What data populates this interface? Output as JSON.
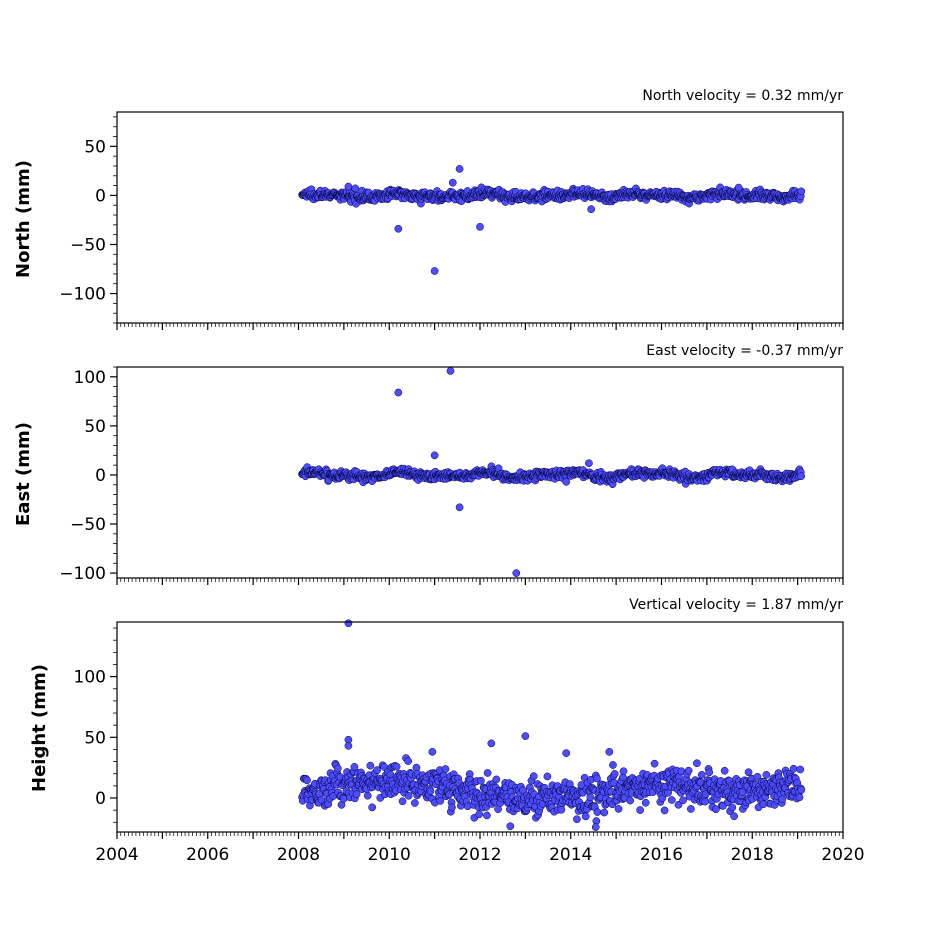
{
  "chart_data": [
    {
      "type": "scatter",
      "ylabel": "North (mm)",
      "velocity_label": "North velocity = 0.32 mm/yr",
      "xlim": [
        2004,
        2020
      ],
      "ylim": [
        -130,
        85
      ],
      "yticks": [
        50,
        0,
        -50,
        -100
      ],
      "ytick_labels": [
        "50",
        "0",
        "−50",
        "−100"
      ],
      "marker_color": "#4d4dff",
      "edge_color": "#000033",
      "time_span": [
        2008.08,
        2019.08
      ],
      "noise_sd": 2.3,
      "wave_amplitude": 1.2,
      "outliers": [
        {
          "x": 2009.1,
          "y": 9
        },
        {
          "x": 2010.2,
          "y": -34
        },
        {
          "x": 2011.0,
          "y": -77
        },
        {
          "x": 2011.4,
          "y": 13
        },
        {
          "x": 2011.55,
          "y": 27
        },
        {
          "x": 2012.0,
          "y": -32
        },
        {
          "x": 2014.45,
          "y": -14
        },
        {
          "x": 2017.7,
          "y": 8
        }
      ]
    },
    {
      "type": "scatter",
      "ylabel": "East (mm)",
      "velocity_label": "East velocity = -0.37 mm/yr",
      "xlim": [
        2004,
        2020
      ],
      "ylim": [
        -105,
        110
      ],
      "yticks": [
        100,
        50,
        0,
        -50,
        -100
      ],
      "ytick_labels": [
        "100",
        "50",
        "0",
        "−50",
        "−100"
      ],
      "marker_color": "#4d4dff",
      "edge_color": "#000033",
      "time_span": [
        2008.08,
        2019.08
      ],
      "noise_sd": 2.2,
      "wave_amplitude": 2.0,
      "outliers": [
        {
          "x": 2010.2,
          "y": 84
        },
        {
          "x": 2011.0,
          "y": 20
        },
        {
          "x": 2011.35,
          "y": 106
        },
        {
          "x": 2011.55,
          "y": -33
        },
        {
          "x": 2012.8,
          "y": -100
        },
        {
          "x": 2014.4,
          "y": 12
        },
        {
          "x": 2013.9,
          "y": -7
        }
      ]
    },
    {
      "type": "scatter",
      "ylabel": "Height (mm)",
      "velocity_label": "Vertical velocity = 1.87 mm/yr",
      "xlim": [
        2004,
        2020
      ],
      "ylim": [
        -28,
        145
      ],
      "yticks": [
        100,
        50,
        0
      ],
      "ytick_labels": [
        "100",
        "50",
        "0"
      ],
      "xticks": [
        2004,
        2006,
        2008,
        2010,
        2012,
        2014,
        2016,
        2018,
        2020
      ],
      "xtick_labels": [
        "2004",
        "2006",
        "2008",
        "2010",
        "2012",
        "2014",
        "2016",
        "2018",
        "2020"
      ],
      "marker_color": "#4d4dff",
      "edge_color": "#000033",
      "time_span": [
        2008.08,
        2019.08
      ],
      "noise_sd": 7.5,
      "wave_amplitude": 6.0,
      "outliers": [
        {
          "x": 2009.1,
          "y": 144
        },
        {
          "x": 2009.1,
          "y": 48
        },
        {
          "x": 2009.1,
          "y": 43
        },
        {
          "x": 2010.95,
          "y": 38
        },
        {
          "x": 2012.25,
          "y": 45
        },
        {
          "x": 2013.0,
          "y": 51
        },
        {
          "x": 2013.9,
          "y": 37
        },
        {
          "x": 2014.85,
          "y": 38
        },
        {
          "x": 2017.6,
          "y": -15
        },
        {
          "x": 2014.55,
          "y": -24
        }
      ]
    }
  ]
}
